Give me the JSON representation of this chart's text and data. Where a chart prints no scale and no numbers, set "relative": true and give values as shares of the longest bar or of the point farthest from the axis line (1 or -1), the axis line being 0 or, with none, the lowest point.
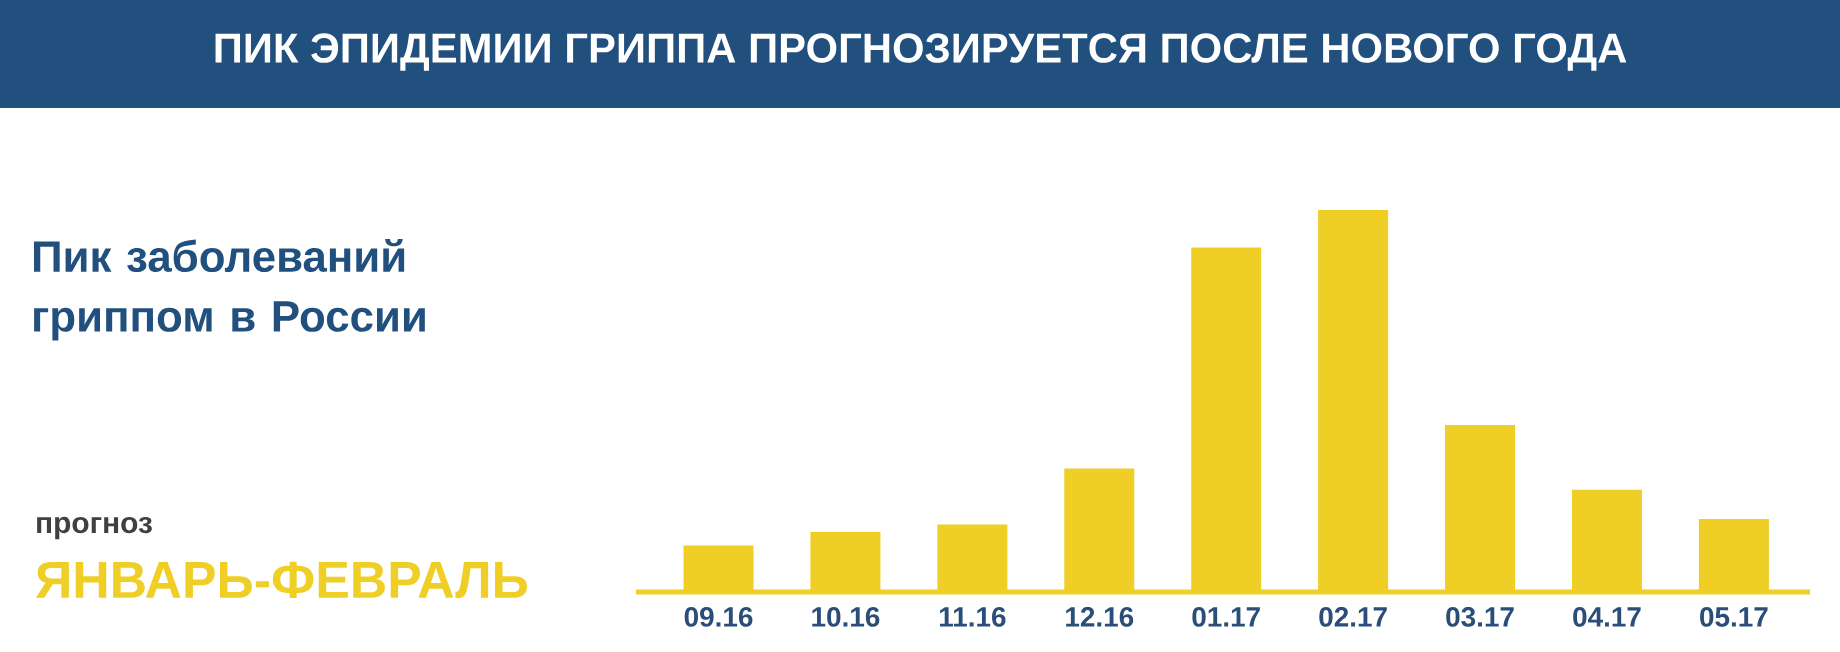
{
  "chart_data": {
    "type": "bar",
    "title": "ПИК ЭПИДЕМИИ ГРИППА ПРОГНОЗИРУЕТСЯ ПОСЛЕ НОВОГО ГОДА",
    "subtitle": "Пик заболеваний гриппом в России",
    "annotations": [
      "прогноз",
      "ЯНВАРЬ-ФЕВРАЛЬ"
    ],
    "categories": [
      "09.16",
      "10.16",
      "11.16",
      "12.16",
      "01.17",
      "02.17",
      "03.17",
      "04.17",
      "05.17"
    ],
    "values": [
      0.122,
      0.157,
      0.177,
      0.323,
      0.902,
      1,
      0.437,
      0.268,
      0.191
    ],
    "color": "#efcf26",
    "relative": true
  }
}
